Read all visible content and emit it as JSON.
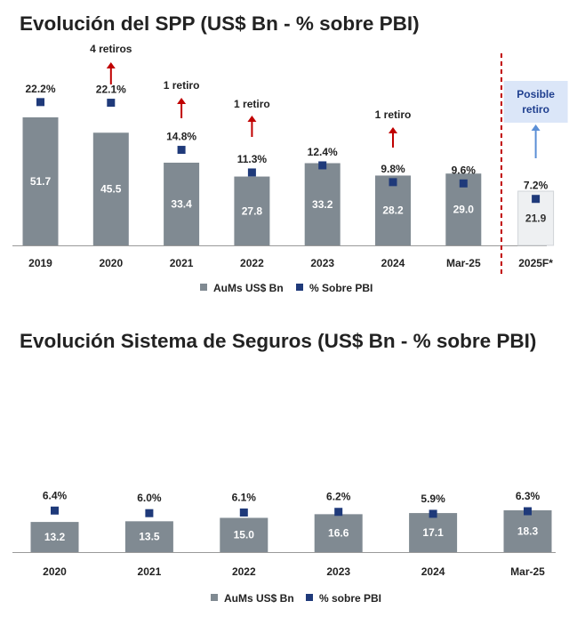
{
  "chart_data": [
    {
      "type": "bar",
      "title": "Evolución del SPP (US$ Bn - % sobre PBI)",
      "categories": [
        "2019",
        "2020",
        "2021",
        "2022",
        "2023",
        "2024",
        "Mar-25",
        "2025F*"
      ],
      "series": [
        {
          "name": "AuMs US$ Bn",
          "kind": "bar",
          "color": "#808a92",
          "values": [
            51.7,
            45.5,
            33.4,
            27.8,
            33.2,
            28.2,
            29.0,
            21.9
          ],
          "labels": [
            "51.7",
            "45.5",
            "33.4",
            "27.8",
            "33.2",
            "28.2",
            "29.0",
            "21.9"
          ]
        },
        {
          "name": "% Sobre PBI",
          "kind": "marker",
          "color": "#1f3a7a",
          "values": [
            22.2,
            22.1,
            14.8,
            11.3,
            12.4,
            9.8,
            9.6,
            7.2
          ],
          "labels": [
            "22.2%",
            "22.1%",
            "14.8%",
            "11.3%",
            "12.4%",
            "9.8%",
            "9.6%",
            "7.2%"
          ]
        }
      ],
      "forecast_bar_color": "#eef0f2",
      "annotations": [
        {
          "category": "2020",
          "text": "4 retiros"
        },
        {
          "category": "2021",
          "text": "1 retiro"
        },
        {
          "category": "2022",
          "text": "1 retiro"
        },
        {
          "category": "2024",
          "text": "1 retiro"
        }
      ],
      "forecast_note": {
        "category": "2025F*",
        "line1": "Posible",
        "line2": "retiro"
      },
      "divider_before": "2025F*",
      "legend": [
        "AuMs US$ Bn",
        "% Sobre PBI"
      ],
      "legend_position": "bottom",
      "arrow_color": "#c00000",
      "forecast_arrow_color": "#5b8fd6",
      "divider_color": "#c00000",
      "grid": false
    },
    {
      "type": "bar",
      "title": "Evolución Sistema de Seguros (US$ Bn - % sobre PBI)",
      "categories": [
        "2020",
        "2021",
        "2022",
        "2023",
        "2024",
        "Mar-25"
      ],
      "series": [
        {
          "name": "AuMs US$ Bn",
          "kind": "bar",
          "color": "#808a92",
          "values": [
            13.2,
            13.5,
            15.0,
            16.6,
            17.1,
            18.3
          ],
          "labels": [
            "13.2",
            "13.5",
            "15.0",
            "16.6",
            "17.1",
            "18.3"
          ]
        },
        {
          "name": "% sobre PBI",
          "kind": "marker",
          "color": "#1f3a7a",
          "values": [
            6.4,
            6.0,
            6.1,
            6.2,
            5.9,
            6.3
          ],
          "labels": [
            "6.4%",
            "6.0%",
            "6.1%",
            "6.2%",
            "5.9%",
            "6.3%"
          ]
        }
      ],
      "legend": [
        "AuMs US$ Bn",
        "% sobre PBI"
      ],
      "legend_position": "bottom",
      "grid": false
    }
  ]
}
